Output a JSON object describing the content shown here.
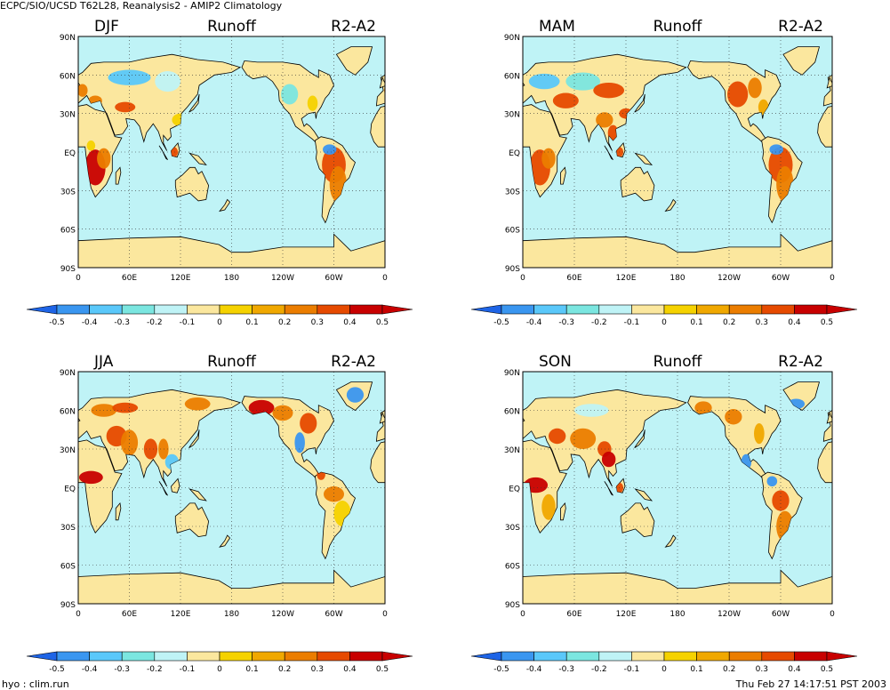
{
  "header": {
    "title": "ECPC/SIO/UCSD T62L28, Reanalysis2 - AMIP2 Climatology"
  },
  "footer": {
    "left": "hyo : clim.run",
    "right": "Thu Feb 27 14:17:51 PST 2003"
  },
  "colors": {
    "ocean": "#bff3f6",
    "land_base": "#fbe79e",
    "palette": [
      "#1e64e6",
      "#3a96f0",
      "#5ac8fa",
      "#7be6e0",
      "#bff3f6",
      "#fbe79e",
      "#f5d200",
      "#f0a800",
      "#eb7d00",
      "#e64a00",
      "#c80000"
    ]
  },
  "panels": [
    {
      "season": "DJF",
      "variable": "Runoff",
      "label": "R2-A2"
    },
    {
      "season": "MAM",
      "variable": "Runoff",
      "label": "R2-A2"
    },
    {
      "season": "JJA",
      "variable": "Runoff",
      "label": "R2-A2"
    },
    {
      "season": "SON",
      "variable": "Runoff",
      "label": "R2-A2"
    }
  ],
  "axes": {
    "lat_labels": [
      "90N",
      "60N",
      "30N",
      "EQ",
      "30S",
      "60S",
      "90S"
    ],
    "lon_labels": [
      "0",
      "60E",
      "120E",
      "180",
      "120W",
      "60W",
      "0"
    ]
  },
  "colorbar": {
    "ticks": [
      "-0.5",
      "-0.4",
      "-0.3",
      "-0.2",
      "-0.1",
      "0",
      "0.1",
      "0.2",
      "0.3",
      "0.4",
      "0.5"
    ]
  },
  "chart_data": {
    "type": "heatmap",
    "title": "",
    "xlabel": "",
    "ylabel": "",
    "xlim": [
      0,
      360
    ],
    "ylim": [
      -90,
      90
    ],
    "grid": true,
    "colorbar_range": [
      -0.5,
      0.5
    ],
    "panels": [
      "DJF",
      "MAM",
      "JJA",
      "SON"
    ]
  }
}
